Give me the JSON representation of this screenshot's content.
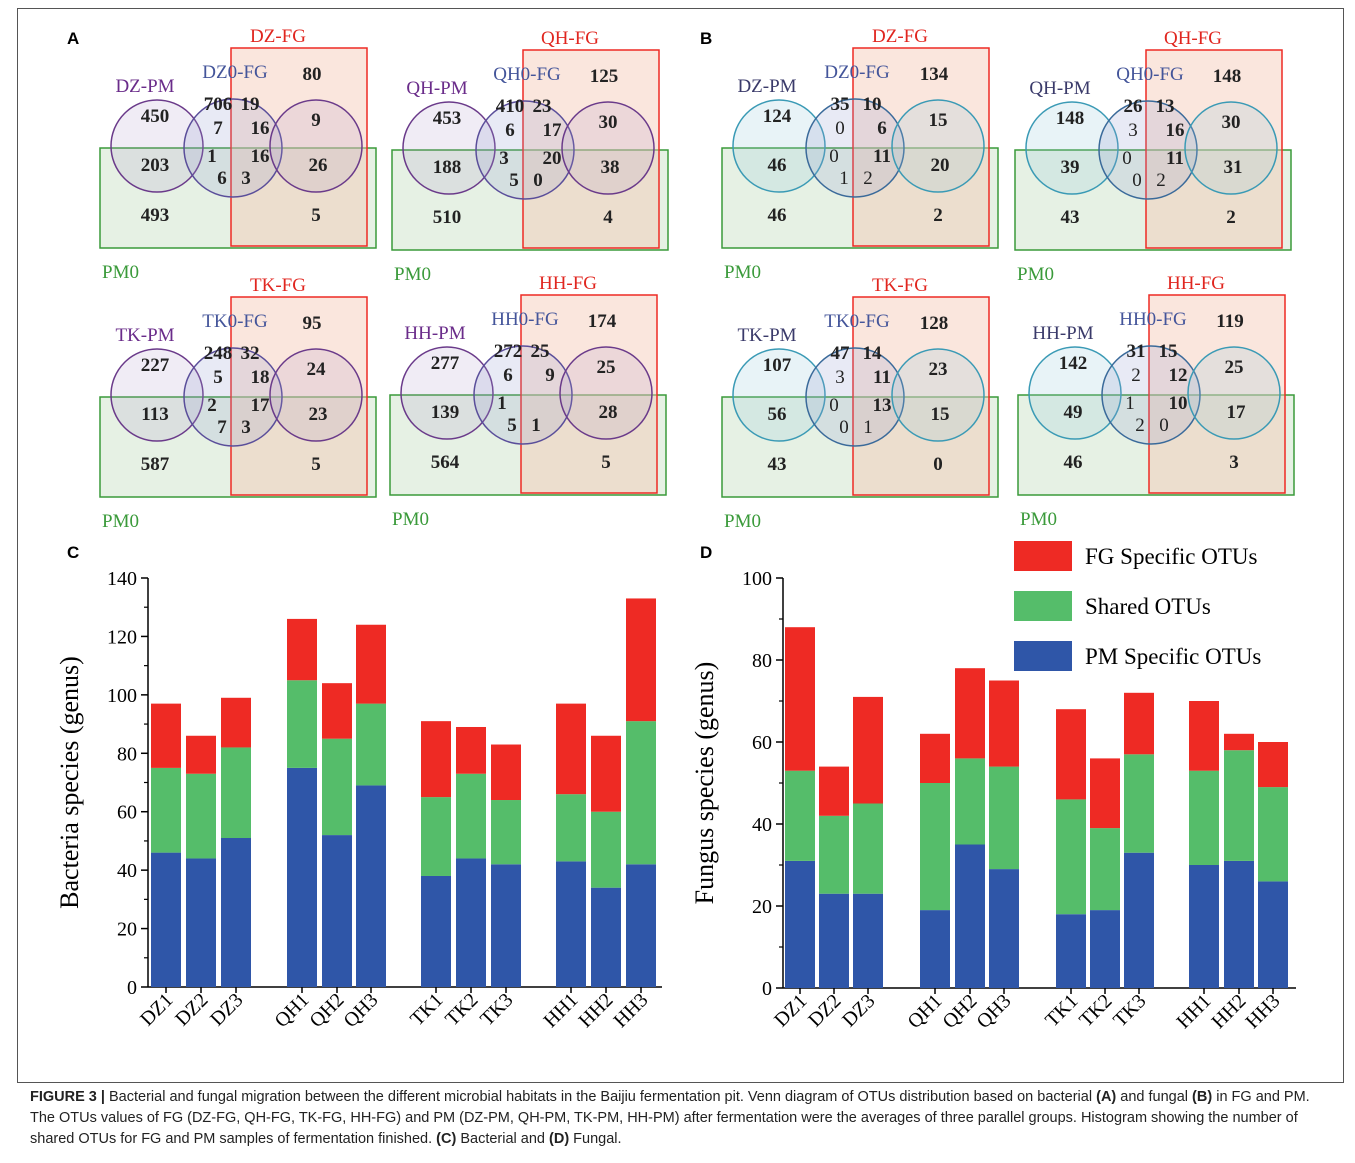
{
  "figure": {
    "panels": {
      "A": "A",
      "B": "B",
      "C": "C",
      "D": "D"
    },
    "caption": {
      "lead": "FIGURE 3 |",
      "t1": " Bacterial and fungal migration between the different microbial habitats in the Baijiu fermentation pit. Venn diagram of OTUs distribution based on bacterial ",
      "a": "(A)",
      "t2": " and fungal ",
      "b": "(B)",
      "t3": " in FG and PM. The OTUs values of FG (DZ-FG, QH-FG, TK-FG, HH-FG) and PM (DZ-PM, QH-PM, TK-PM, HH-PM) after fermentation were the averages of three parallel groups. Histogram showing the number of shared OTUs for FG and PM samples of fermentation finished. ",
      "c": "(C)",
      "t4": " Bacterial and ",
      "d": "(D)",
      "t5": " Fungal."
    }
  },
  "colors": {
    "fg": "#ee2a24",
    "shared": "#55bd6a",
    "pm": "#2f56a8",
    "pm0": "#3a9a3a",
    "fgLabel": "#e0261f",
    "circleA": "#6a3a8a",
    "circleB": "#3a9ab5",
    "mid": "#44559a"
  },
  "venn": [
    {
      "panel": "A",
      "pm": "DZ-PM",
      "mid": "DZ0-FG",
      "fg": "DZ-FG",
      "pm0": "PM0",
      "n": [
        "450",
        "706",
        "19",
        "80",
        "7",
        "16",
        "9",
        "203",
        "1",
        "16",
        "26",
        "6",
        "3",
        "493",
        "5"
      ]
    },
    {
      "panel": "A",
      "pm": "QH-PM",
      "mid": "QH0-FG",
      "fg": "QH-FG",
      "pm0": "PM0",
      "n": [
        "453",
        "410",
        "23",
        "125",
        "6",
        "17",
        "30",
        "188",
        "3",
        "20",
        "38",
        "5",
        "0",
        "510",
        "4"
      ]
    },
    {
      "panel": "A",
      "pm": "TK-PM",
      "mid": "TK0-FG",
      "fg": "TK-FG",
      "pm0": "PM0",
      "n": [
        "227",
        "248",
        "32",
        "95",
        "5",
        "18",
        "24",
        "113",
        "2",
        "17",
        "23",
        "7",
        "3",
        "587",
        "5"
      ]
    },
    {
      "panel": "A",
      "pm": "HH-PM",
      "mid": "HH0-FG",
      "fg": "HH-FG",
      "pm0": "PM0",
      "n": [
        "277",
        "272",
        "25",
        "174",
        "6",
        "9",
        "25",
        "139",
        "1",
        "",
        "28",
        "5",
        "1",
        "564",
        "5"
      ]
    },
    {
      "panel": "B",
      "pm": "DZ-PM",
      "mid": "DZ0-FG",
      "fg": "DZ-FG",
      "pm0": "PM0",
      "n": [
        "124",
        "35",
        "10",
        "134",
        "0",
        "6",
        "15",
        "46",
        "0",
        "11",
        "20",
        "1",
        "2",
        "46",
        "2"
      ]
    },
    {
      "panel": "B",
      "pm": "QH-PM",
      "mid": "QH0-FG",
      "fg": "QH-FG",
      "pm0": "PM0",
      "n": [
        "148",
        "26",
        "13",
        "148",
        "3",
        "16",
        "30",
        "39",
        "0",
        "11",
        "31",
        "0",
        "2",
        "43",
        "2"
      ]
    },
    {
      "panel": "B",
      "pm": "TK-PM",
      "mid": "TK0-FG",
      "fg": "TK-FG",
      "pm0": "PM0",
      "n": [
        "107",
        "47",
        "14",
        "128",
        "3",
        "11",
        "23",
        "56",
        "0",
        "13",
        "15",
        "0",
        "1",
        "43",
        "0"
      ]
    },
    {
      "panel": "B",
      "pm": "HH-PM",
      "mid": "HH0-FG",
      "fg": "HH-FG",
      "pm0": "PM0",
      "n": [
        "142",
        "31",
        "15",
        "119",
        "2",
        "12",
        "25",
        "49",
        "1",
        "10",
        "17",
        "2",
        "0",
        "46",
        "3"
      ]
    }
  ],
  "chart_data": [
    {
      "type": "bar",
      "panel": "C",
      "stacked": true,
      "categories": [
        "DZ1",
        "DZ2",
        "DZ3",
        "QH1",
        "QH2",
        "QH3",
        "TK1",
        "TK2",
        "TK3",
        "HH1",
        "HH2",
        "HH3"
      ],
      "series": [
        {
          "name": "PM Specific OTUs",
          "values": [
            46,
            44,
            51,
            75,
            52,
            69,
            38,
            44,
            42,
            43,
            34,
            42
          ]
        },
        {
          "name": "Shared OTUs",
          "values": [
            29,
            29,
            31,
            30,
            33,
            28,
            27,
            29,
            22,
            23,
            26,
            49
          ]
        },
        {
          "name": "FG Specific OTUs",
          "values": [
            22,
            13,
            17,
            21,
            19,
            27,
            26,
            16,
            19,
            31,
            26,
            42
          ]
        }
      ],
      "xlabel": "",
      "ylabel": "Bacteria species (genus)",
      "ylim": [
        0,
        140
      ],
      "yticks": [
        "0",
        "20",
        "40",
        "60",
        "80",
        "100",
        "120",
        "140"
      ]
    },
    {
      "type": "bar",
      "panel": "D",
      "stacked": true,
      "categories": [
        "DZ1",
        "DZ2",
        "DZ3",
        "QH1",
        "QH2",
        "QH3",
        "TK1",
        "TK2",
        "TK3",
        "HH1",
        "HH2",
        "HH3"
      ],
      "series": [
        {
          "name": "PM Specific OTUs",
          "values": [
            31,
            23,
            23,
            19,
            35,
            29,
            18,
            19,
            33,
            30,
            31,
            26
          ]
        },
        {
          "name": "Shared OTUs",
          "values": [
            22,
            19,
            22,
            31,
            21,
            25,
            28,
            20,
            24,
            23,
            27,
            23
          ]
        },
        {
          "name": "FG Specific OTUs",
          "values": [
            35,
            12,
            26,
            12,
            22,
            21,
            22,
            17,
            15,
            17,
            4,
            11
          ]
        }
      ],
      "xlabel": "",
      "ylabel": "Fungus species (genus)",
      "ylim": [
        0,
        100
      ],
      "yticks": [
        "0",
        "20",
        "40",
        "60",
        "80",
        "100"
      ],
      "legend": {
        "position": "top-right",
        "entries": [
          "FG Specific OTUs",
          "Shared OTUs",
          "PM Specific OTUs"
        ]
      }
    }
  ]
}
